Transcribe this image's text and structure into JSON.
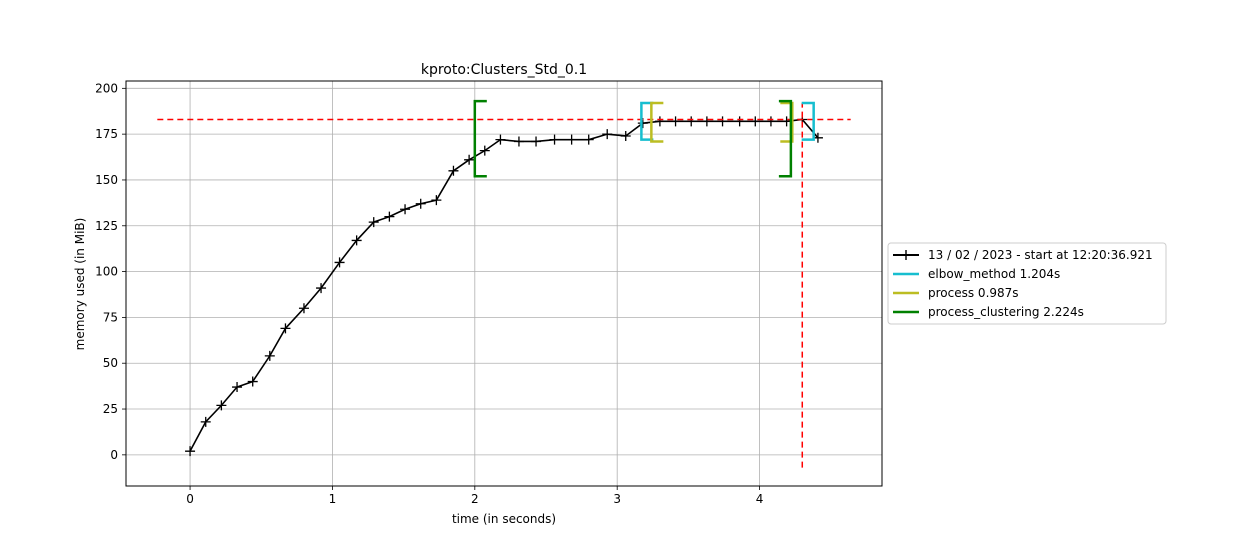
{
  "chart_data": {
    "type": "line",
    "title": "kproto:Clusters_Std_0.1",
    "xlabel": "time (in seconds)",
    "ylabel": "memory used (in MiB)",
    "xlim": [
      -0.45,
      4.86
    ],
    "ylim": [
      -17,
      204
    ],
    "xticks": [
      "0",
      "1",
      "2",
      "3",
      "4"
    ],
    "yticks": [
      "0",
      "25",
      "50",
      "75",
      "100",
      "125",
      "150",
      "175",
      "200"
    ],
    "grid": true,
    "legend_position": "right",
    "series": [
      {
        "name": "13 / 02 / 2023 - start at 12:20:36.921",
        "color": "#000000",
        "marker": "+",
        "x": [
          0.0,
          0.11,
          0.22,
          0.33,
          0.44,
          0.56,
          0.67,
          0.8,
          0.92,
          1.05,
          1.17,
          1.29,
          1.4,
          1.51,
          1.62,
          1.73,
          1.85,
          1.96,
          2.07,
          2.18,
          2.31,
          2.43,
          2.56,
          2.68,
          2.8,
          2.93,
          3.06,
          3.18,
          3.3,
          3.41,
          3.52,
          3.63,
          3.74,
          3.86,
          3.97,
          4.08,
          4.19,
          4.3,
          4.41
        ],
        "y": [
          2,
          18,
          27,
          37,
          40,
          54,
          69,
          80,
          91,
          105,
          117,
          127,
          130,
          134,
          137,
          139,
          155,
          161,
          166,
          172,
          171,
          171,
          172,
          172,
          172,
          175,
          174,
          181,
          182,
          182,
          182,
          182,
          182,
          182,
          182,
          182,
          182,
          183,
          173
        ]
      }
    ],
    "brackets": [
      {
        "name": "elbow_method 1.204s",
        "color": "#17becf",
        "x_start": 3.17,
        "x_end": 4.38,
        "y_low": 172,
        "y_high": 192
      },
      {
        "name": "process 0.987s",
        "color": "#bcbd22",
        "x_start": 3.24,
        "x_end": 4.23,
        "y_low": 171,
        "y_high": 192
      },
      {
        "name": "process_clustering 2.224s",
        "color": "#008000",
        "x_start": 2.0,
        "x_end": 4.22,
        "y_low": 152,
        "y_high": 193
      }
    ],
    "max_line": {
      "color": "#ff0000",
      "y": 183,
      "x": 4.3
    }
  }
}
